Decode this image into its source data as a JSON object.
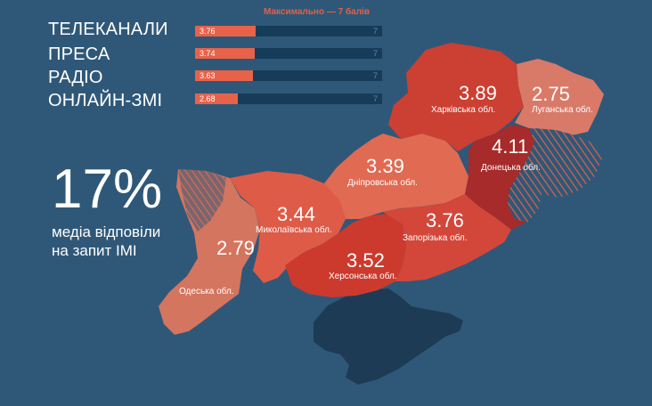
{
  "header": {
    "max_note": "Максимально — 7 балів"
  },
  "scores": [
    {
      "label": "ТЕЛЕКАНАЛИ",
      "value": 3.76,
      "value_text": "3.76",
      "max_text": "7"
    },
    {
      "label": "ПРЕСА",
      "value": 3.74,
      "value_text": "3.74",
      "max_text": "7"
    },
    {
      "label": "РАДІО",
      "value": 3.63,
      "value_text": "3.63",
      "max_text": "7"
    },
    {
      "label": "ОНЛАЙН-ЗМІ",
      "value": 2.68,
      "value_text": "2.68",
      "max_text": "7"
    }
  ],
  "max_score": 7,
  "headline": {
    "percent": "17%",
    "line1": "медіа відповіли",
    "line2": "на запит ІМІ"
  },
  "regions": [
    {
      "id": "kharkiv",
      "name": "Харківська обл.",
      "value": "3.89"
    },
    {
      "id": "luhansk",
      "name": "Луганська обл.",
      "value": "2.75"
    },
    {
      "id": "donetsk",
      "name": "Донецька обл.",
      "value": "4.11"
    },
    {
      "id": "dnipro",
      "name": "Дніпровська обл.",
      "value": "3.39"
    },
    {
      "id": "mykolaiv",
      "name": "Миколаївська обл.",
      "value": "3.44"
    },
    {
      "id": "zaporizhzhia",
      "name": "Запорізька обл.",
      "value": "3.76"
    },
    {
      "id": "odesa",
      "name": "Одеська обл.",
      "value": "2.79"
    },
    {
      "id": "kherson",
      "name": "Херсонська обл.",
      "value": "3.52"
    }
  ],
  "colors": {
    "background": "#2f5878",
    "accent": "#e8624a",
    "bar_track": "#173c5a",
    "crimea": "#1d3b55"
  }
}
